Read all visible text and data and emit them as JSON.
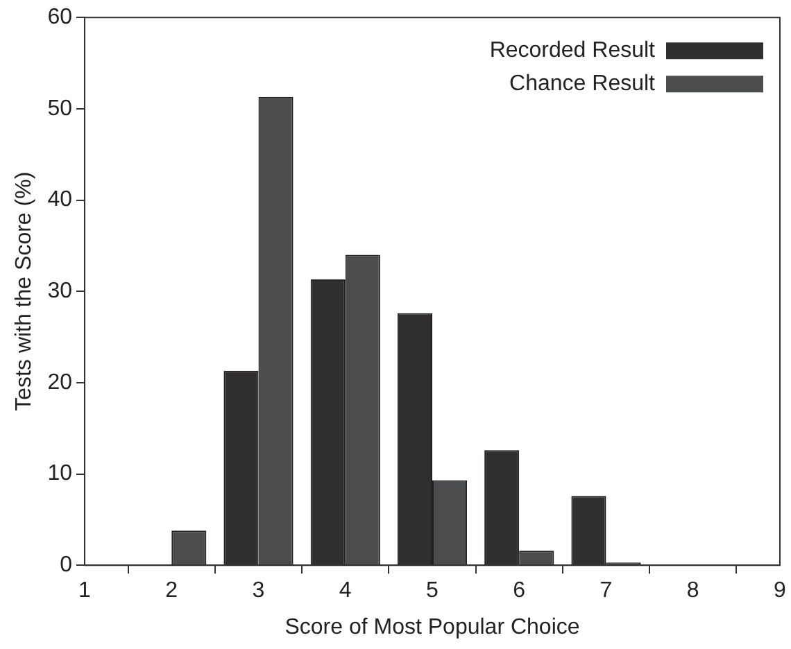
{
  "chart_data": {
    "type": "bar",
    "xlabel": "Score of Most Popular Choice",
    "ylabel": "Tests with the Score (%)",
    "x": [
      1,
      2,
      3,
      4,
      5,
      6,
      7,
      8
    ],
    "series": [
      {
        "name": "Recorded Result",
        "color": "#302e2f",
        "values": [
          null,
          0.1,
          21.3,
          31.3,
          27.6,
          12.6,
          7.6,
          0.1
        ]
      },
      {
        "name": "Chance Result",
        "color": "#4a4c4e",
        "values": [
          0.1,
          3.8,
          51.3,
          34.0,
          9.3,
          1.6,
          0.3,
          0.1
        ]
      }
    ],
    "xlim": [
      1,
      9
    ],
    "xticks": [
      1,
      2,
      3,
      4,
      5,
      6,
      7,
      8,
      9
    ],
    "ylim": [
      0,
      60
    ],
    "yticks": [
      0,
      10,
      20,
      30,
      40,
      50,
      60
    ],
    "grid": false,
    "legend": "top right"
  }
}
